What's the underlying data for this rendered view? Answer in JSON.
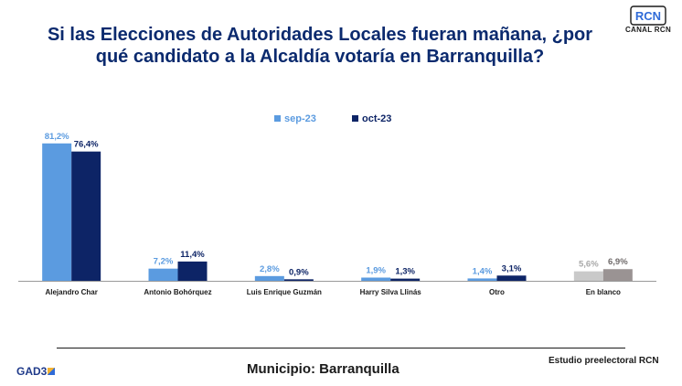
{
  "header": {
    "title_line1": "Si las Elecciones de Autoridades Locales fueran mañana, ¿por",
    "title_line2": "qué candidato a la Alcaldía votaría en Barranquilla?",
    "logo_text": "CANAL RCN",
    "logo_mark": "RCN"
  },
  "footer": {
    "municipio": "Municipio: Barranquilla",
    "estudio": "Estudio preelectoral RCN",
    "gad3_label": "GAD3"
  },
  "chart_data": {
    "type": "bar",
    "categories": [
      "Alejandro Char",
      "Antonio Bohórquez",
      "Luis Enrique Guzmán",
      "Harry Silva Llinás",
      "Otro",
      "En blanco"
    ],
    "series": [
      {
        "name": "sep-23",
        "values": [
          81.2,
          7.2,
          2.8,
          1.9,
          1.4,
          5.6
        ],
        "labels": [
          "81,2%",
          "7,2%",
          "2,8%",
          "1,9%",
          "1,4%",
          "5,6%"
        ],
        "color": "#5b9be0"
      },
      {
        "name": "oct-23",
        "values": [
          76.4,
          11.4,
          0.9,
          1.3,
          3.1,
          6.9
        ],
        "labels": [
          "76,4%",
          "11,4%",
          "0,9%",
          "1,3%",
          "3,1%",
          "6,9%"
        ],
        "color": "#0d2466"
      }
    ],
    "special_colors": {
      "En blanco": [
        "#c9c9c9",
        "#9a9393"
      ]
    },
    "label_colors": {
      "sep-23": "#5b9be0",
      "oct-23": "#0d2466",
      "blank_sep": "#a8a8a8",
      "blank_oct": "#6f6a6a"
    },
    "ylim": [
      0,
      100
    ],
    "legend_position": "top-center",
    "grid": false
  }
}
